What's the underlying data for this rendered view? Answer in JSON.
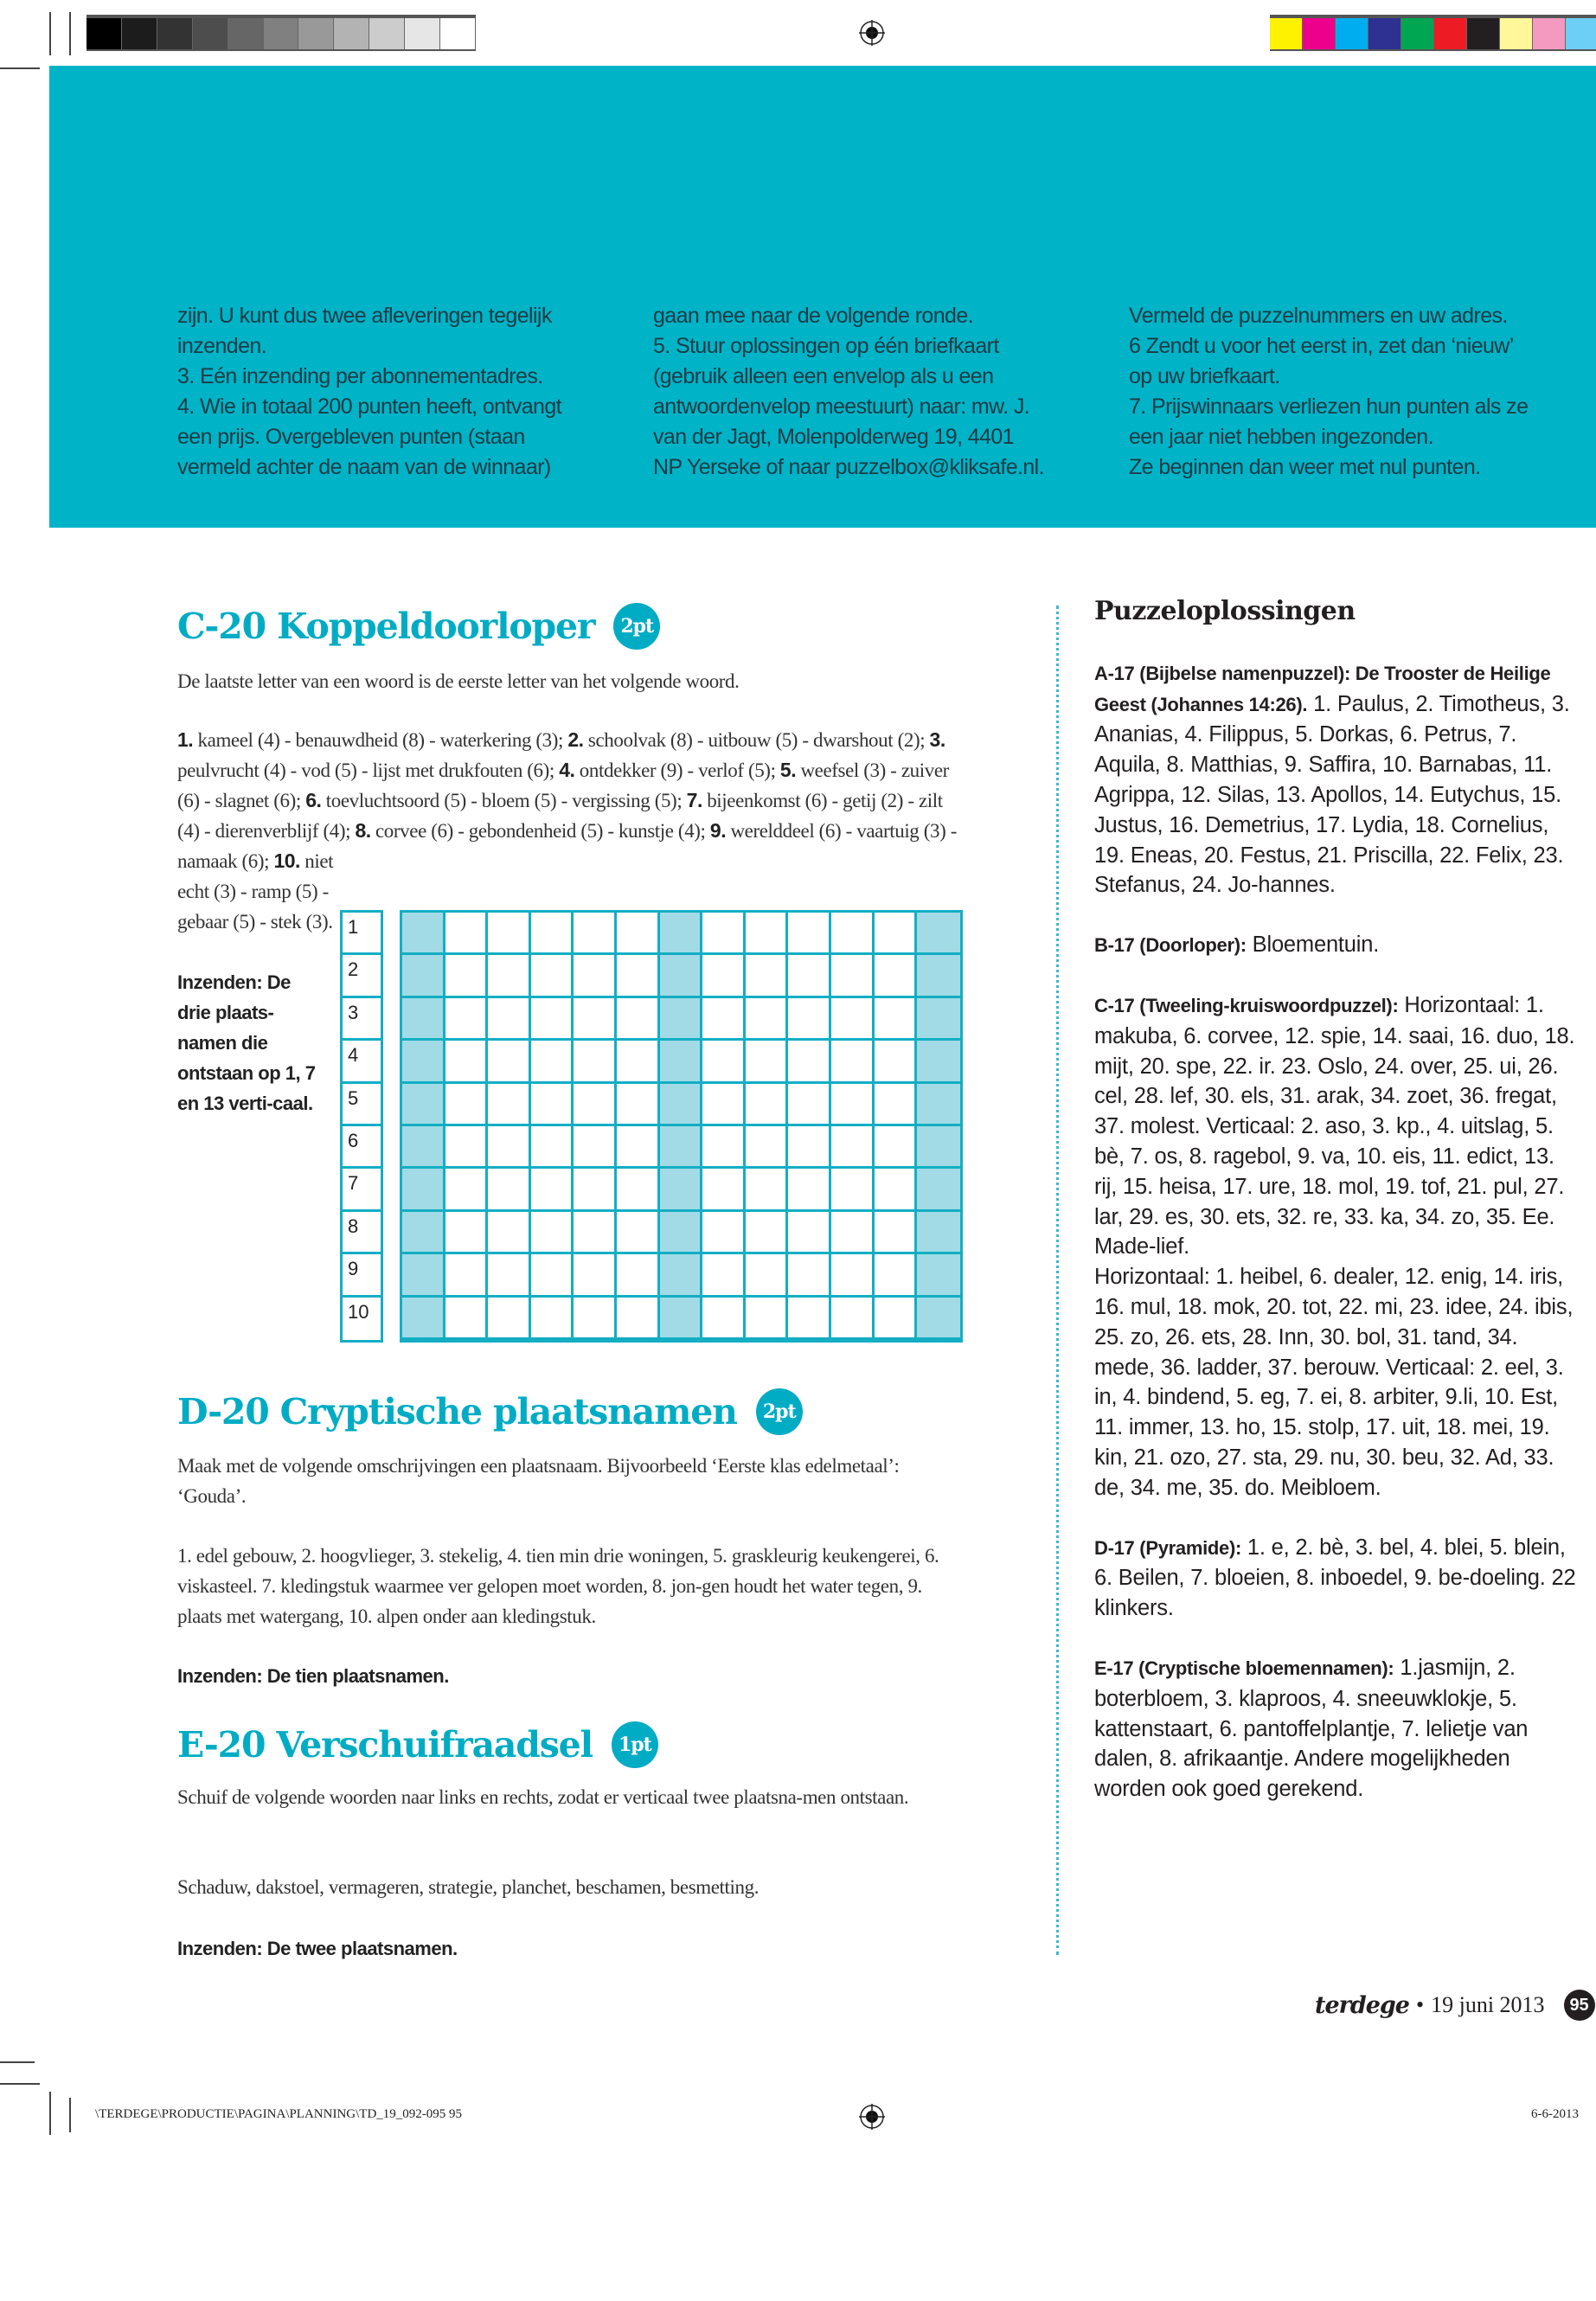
{
  "print_marks": {
    "gray_swatches": [
      "#000000",
      "#1c1c1c",
      "#333333",
      "#4d4d4d",
      "#666666",
      "#808080",
      "#999999",
      "#b3b3b3",
      "#cccccc",
      "#e6e6e6",
      "#ffffff"
    ],
    "color_swatches": [
      "#fff200",
      "#ec008c",
      "#00aeef",
      "#2e3192",
      "#00a651",
      "#ed1c24",
      "#231f20",
      "#fff799",
      "#f49ac1",
      "#6dcff6"
    ]
  },
  "colors": {
    "accent": "#00acc4",
    "band": "#00b3c7",
    "grid_shade": "#a2dbe5"
  },
  "rules": {
    "columns": [
      [
        "zijn. U kunt dus twee afleveringen tegelijk",
        "inzenden.",
        "3. Eén inzending per abonnementadres.",
        "4. Wie in totaal 200 punten heeft, ontvangt",
        "een prijs. Overgebleven punten (staan",
        "vermeld achter de naam van de winnaar)"
      ],
      [
        "gaan mee naar de volgende ronde.",
        "5. Stuur oplossingen op één briefkaart",
        "(gebruik alleen een envelop als u een",
        "antwoordenvelop meestuurt) naar: mw. J.",
        "van der Jagt, Molenpolderweg 19, 4401",
        "NP Yerseke of naar puzzelbox@kliksafe.nl."
      ],
      [
        "Vermeld de puzzelnummers en uw adres.",
        "6 Zendt u voor het eerst in, zet dan ‘nieuw’",
        "op uw briefkaart.",
        "7. Prijswinnaars verliezen hun punten als ze",
        "een jaar niet hebben ingezonden.",
        "Ze beginnen dan weer met nul punten."
      ]
    ]
  },
  "c20": {
    "title": "C-20 Koppeldoorloper",
    "points": "2pt",
    "intro": "De laatste letter van een woord is de eerste letter van het volgende woord.",
    "clues": [
      {
        "num": "1.",
        "text": " kameel (4) - benauwdheid (8) - waterkering (3); "
      },
      {
        "num": "2.",
        "text": " schoolvak (8) - uitbouw (5) - dwarshout (2); "
      },
      {
        "num": "3.",
        "text": " peulvrucht (4) - vod (5) - lijst met drukfouten (6); "
      },
      {
        "num": "4.",
        "text": " ontdekker (9) - verlof (5); "
      },
      {
        "num": "5.",
        "text": " weefsel (3) - zuiver (6) - slagnet (6); "
      },
      {
        "num": "6.",
        "text": " toevluchtsoord (5) - bloem (5) - vergissing (5); "
      },
      {
        "num": "7.",
        "text": " bijeenkomst (6) - getij (2) - zilt (4) - dierenverblijf (4); "
      },
      {
        "num": "8.",
        "text": " corvee (6) - gebondenheid (5) - kunstje (4); "
      },
      {
        "num": "9.",
        "text": " werelddeel (6) - vaartuig (3) - namaak (6); "
      },
      {
        "num": "10.",
        "text": " niet echt (3) - ramp (5) - gebaar (5) - stek (3)."
      }
    ],
    "submit": "Inzenden: De drie plaats-namen die ontstaan op 1, 7 en 13 verti-caal.",
    "grid": {
      "rows": [
        "1",
        "2",
        "3",
        "4",
        "5",
        "6",
        "7",
        "8",
        "9",
        "10"
      ],
      "columns": 13,
      "shaded_columns": [
        1,
        7,
        13
      ]
    }
  },
  "d20": {
    "title": "D-20 Cryptische plaatsnamen",
    "points": "2pt",
    "intro": "Maak met de volgende omschrijvingen een plaatsnaam. Bijvoorbeeld ‘Eerste klas edelmetaal’: ‘Gouda’.",
    "clues": "1. edel gebouw, 2. hoogvlieger, 3. stekelig, 4. tien min drie woningen, 5. graskleurig keukengerei, 6. viskasteel. 7. kledingstuk waarmee ver gelopen moet worden, 8. jon-gen houdt het water tegen, 9. plaats met watergang, 10. alpen onder aan kledingstuk.",
    "submit": "Inzenden: De tien plaatsnamen."
  },
  "e20": {
    "title": "E-20 Verschuifraadsel",
    "points": "1pt",
    "intro": "Schuif de volgende woorden naar links en rechts, zodat er verticaal twee plaatsna-men ontstaan.",
    "words": "Schaduw, dakstoel, vermageren, strategie, planchet, beschamen, besmetting.",
    "submit": "Inzenden: De twee plaatsnamen."
  },
  "solutions": {
    "title": "Puzzeloplossingen",
    "items": [
      {
        "label": "A-17 (Bijbelse namenpuzzel): De Trooster de Heilige Geest (Johannes 14:26).",
        "text": " 1. Paulus, 2. Timotheus, 3. Ananias, 4. Filippus, 5. Dorkas, 6. Petrus, 7. Aquila, 8. Matthias, 9. Saffira, 10. Barnabas, 11. Agrippa, 12. Silas, 13. Apollos, 14. Eutychus, 15. Justus, 16. Demetrius, 17. Lydia, 18. Cornelius, 19. Eneas, 20. Festus, 21. Priscilla, 22. Felix, 23. Stefanus, 24. Jo-hannes."
      },
      {
        "label": "B-17 (Doorloper):",
        "text": " Bloementuin."
      },
      {
        "label": "C-17 (Tweeling-kruiswoordpuzzel):",
        "text": " Horizontaal: 1. makuba, 6. corvee, 12. spie, 14. saai, 16. duo, 18. mijt,  20. spe, 22. ir. 23. Oslo, 24. over, 25. ui, 26. cel, 28. lef, 30. els, 31. arak, 34. zoet, 36. fregat, 37. molest. Verticaal: 2. aso, 3. kp., 4. uitslag, 5. bè, 7. os, 8. ragebol, 9. va, 10. eis, 11. edict, 13. rij, 15. heisa, 17. ure, 18. mol, 19. tof, 21. pul, 27. lar, 29. es, 30. ets, 32. re, 33. ka, 34. zo, 35. Ee. Made-lief.",
        "extra": "Horizontaal: 1. heibel, 6. dealer, 12. enig, 14. iris, 16. mul, 18. mok, 20. tot, 22. mi, 23. idee, 24. ibis, 25. zo, 26. ets, 28. Inn, 30. bol, 31. tand, 34. mede, 36. ladder, 37. berouw. Verticaal: 2. eel, 3. in, 4. bindend, 5. eg, 7. ei, 8. arbiter, 9.li, 10. Est, 11. immer, 13. ho, 15. stolp, 17. uit, 18. mei, 19. kin, 21. ozo, 27. sta, 29. nu, 30. beu, 32. Ad, 33. de, 34. me, 35. do. Meibloem."
      },
      {
        "label": "D-17 (Pyramide):",
        "text": " 1. e, 2. bè, 3. bel, 4. blei, 5. blein, 6. Beilen, 7. bloeien, 8. inboedel, 9. be-doeling. 22 klinkers."
      },
      {
        "label": "E-17 (Cryptische bloemennamen):",
        "text": " 1.jasmijn, 2. boterbloem, 3. klaproos, 4. sneeuwklokje, 5. kattenstaart, 6. pantoffelplantje, 7. lelietje van dalen, 8. afrikaantje. Andere mogelijkheden worden ook goed gerekend."
      }
    ]
  },
  "footer": {
    "logo": "terdege",
    "bullet": "•",
    "date": "19 juni 2013",
    "page": "95"
  },
  "slug": {
    "path": "\\TERDEGE\\PRODUCTIE\\PAGINA\\PLANNING\\TD_19_092-095  95",
    "date": "6-6-2013"
  }
}
